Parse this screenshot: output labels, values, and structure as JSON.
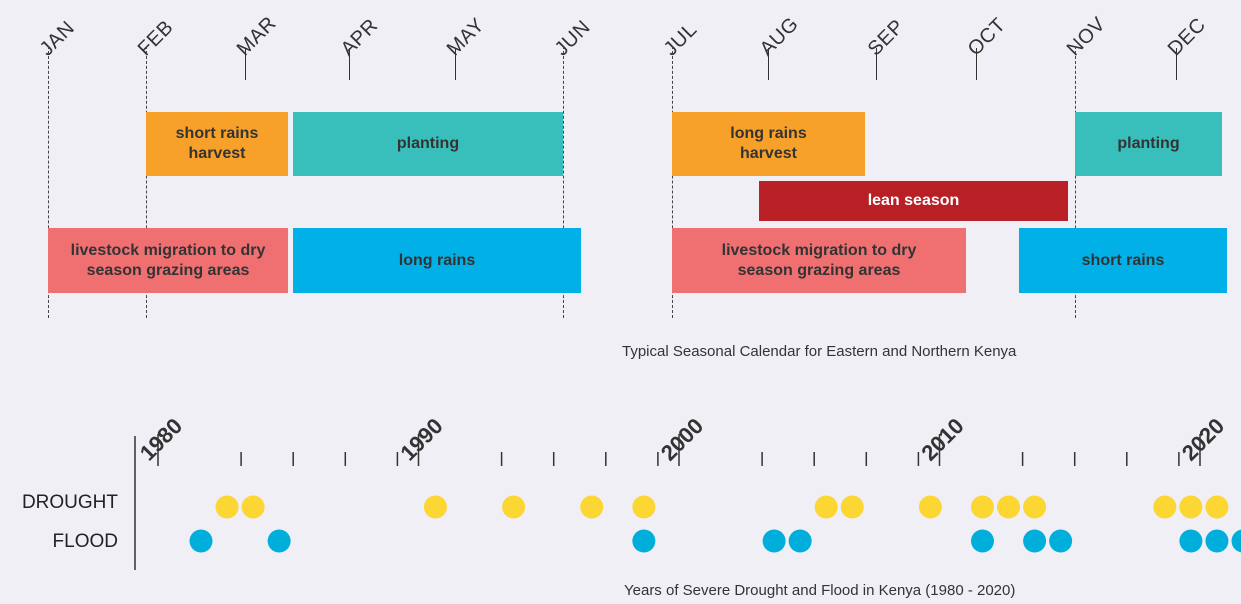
{
  "calendar": {
    "months": [
      "JAN",
      "FEB",
      "MAR",
      "APR",
      "MAY",
      "JUN",
      "JUL",
      "AUG",
      "SEP",
      "OCT",
      "NOV",
      "DEC"
    ],
    "activities": [
      {
        "label": "short rains harvest",
        "lines": [
          "short rains",
          "harvest"
        ],
        "color": "#f7a12a",
        "row": 1
      },
      {
        "label": "planting",
        "lines": [
          "planting"
        ],
        "color": "#38bfbc",
        "row": 1
      },
      {
        "label": "long rains harvest",
        "lines": [
          "long rains",
          "harvest"
        ],
        "color": "#f7a12a",
        "row": 1
      },
      {
        "label": "planting",
        "lines": [
          "planting"
        ],
        "color": "#38bfbc",
        "row": 1
      },
      {
        "label": "lean season",
        "lines": [
          "lean season"
        ],
        "color": "#b82025",
        "row": 2
      },
      {
        "label": "livestock migration to dry season grazing areas",
        "lines": [
          "livestock migration to dry",
          "season grazing areas"
        ],
        "color": "#f07072",
        "row": 3
      },
      {
        "label": "long rains",
        "lines": [
          "long rains"
        ],
        "color": "#00b0e6",
        "row": 3
      },
      {
        "label": "livestock migration to dry season grazing areas",
        "lines": [
          "livestock migration to dry",
          "season grazing areas"
        ],
        "color": "#f07072",
        "row": 3
      },
      {
        "label": "short rains",
        "lines": [
          "short rains"
        ],
        "color": "#00b0e6",
        "row": 3
      }
    ],
    "caption": "Typical Seasonal Calendar for Eastern and Northern Kenya"
  },
  "chart_data": {
    "type": "scatter",
    "title": "",
    "caption": "Years of Severe Drought and Flood in Kenya (1980 - 2020)",
    "x_axis_labels": [
      "1980",
      "1990",
      "2000",
      "2010",
      "2020"
    ],
    "xlim": [
      1980,
      2020
    ],
    "series": [
      {
        "name": "DROUGHT",
        "color": "#fcd633",
        "years": [
          1981,
          1982,
          1989,
          1992,
          1995,
          1997,
          2004,
          2005,
          2008,
          2010,
          2011,
          2012,
          2017,
          2018,
          2019
        ]
      },
      {
        "name": "FLOOD",
        "color": "#00aedb",
        "years": [
          1980,
          1983,
          1997,
          2002,
          2003,
          2010,
          2012,
          2013,
          2018,
          2019,
          2020
        ]
      }
    ]
  }
}
